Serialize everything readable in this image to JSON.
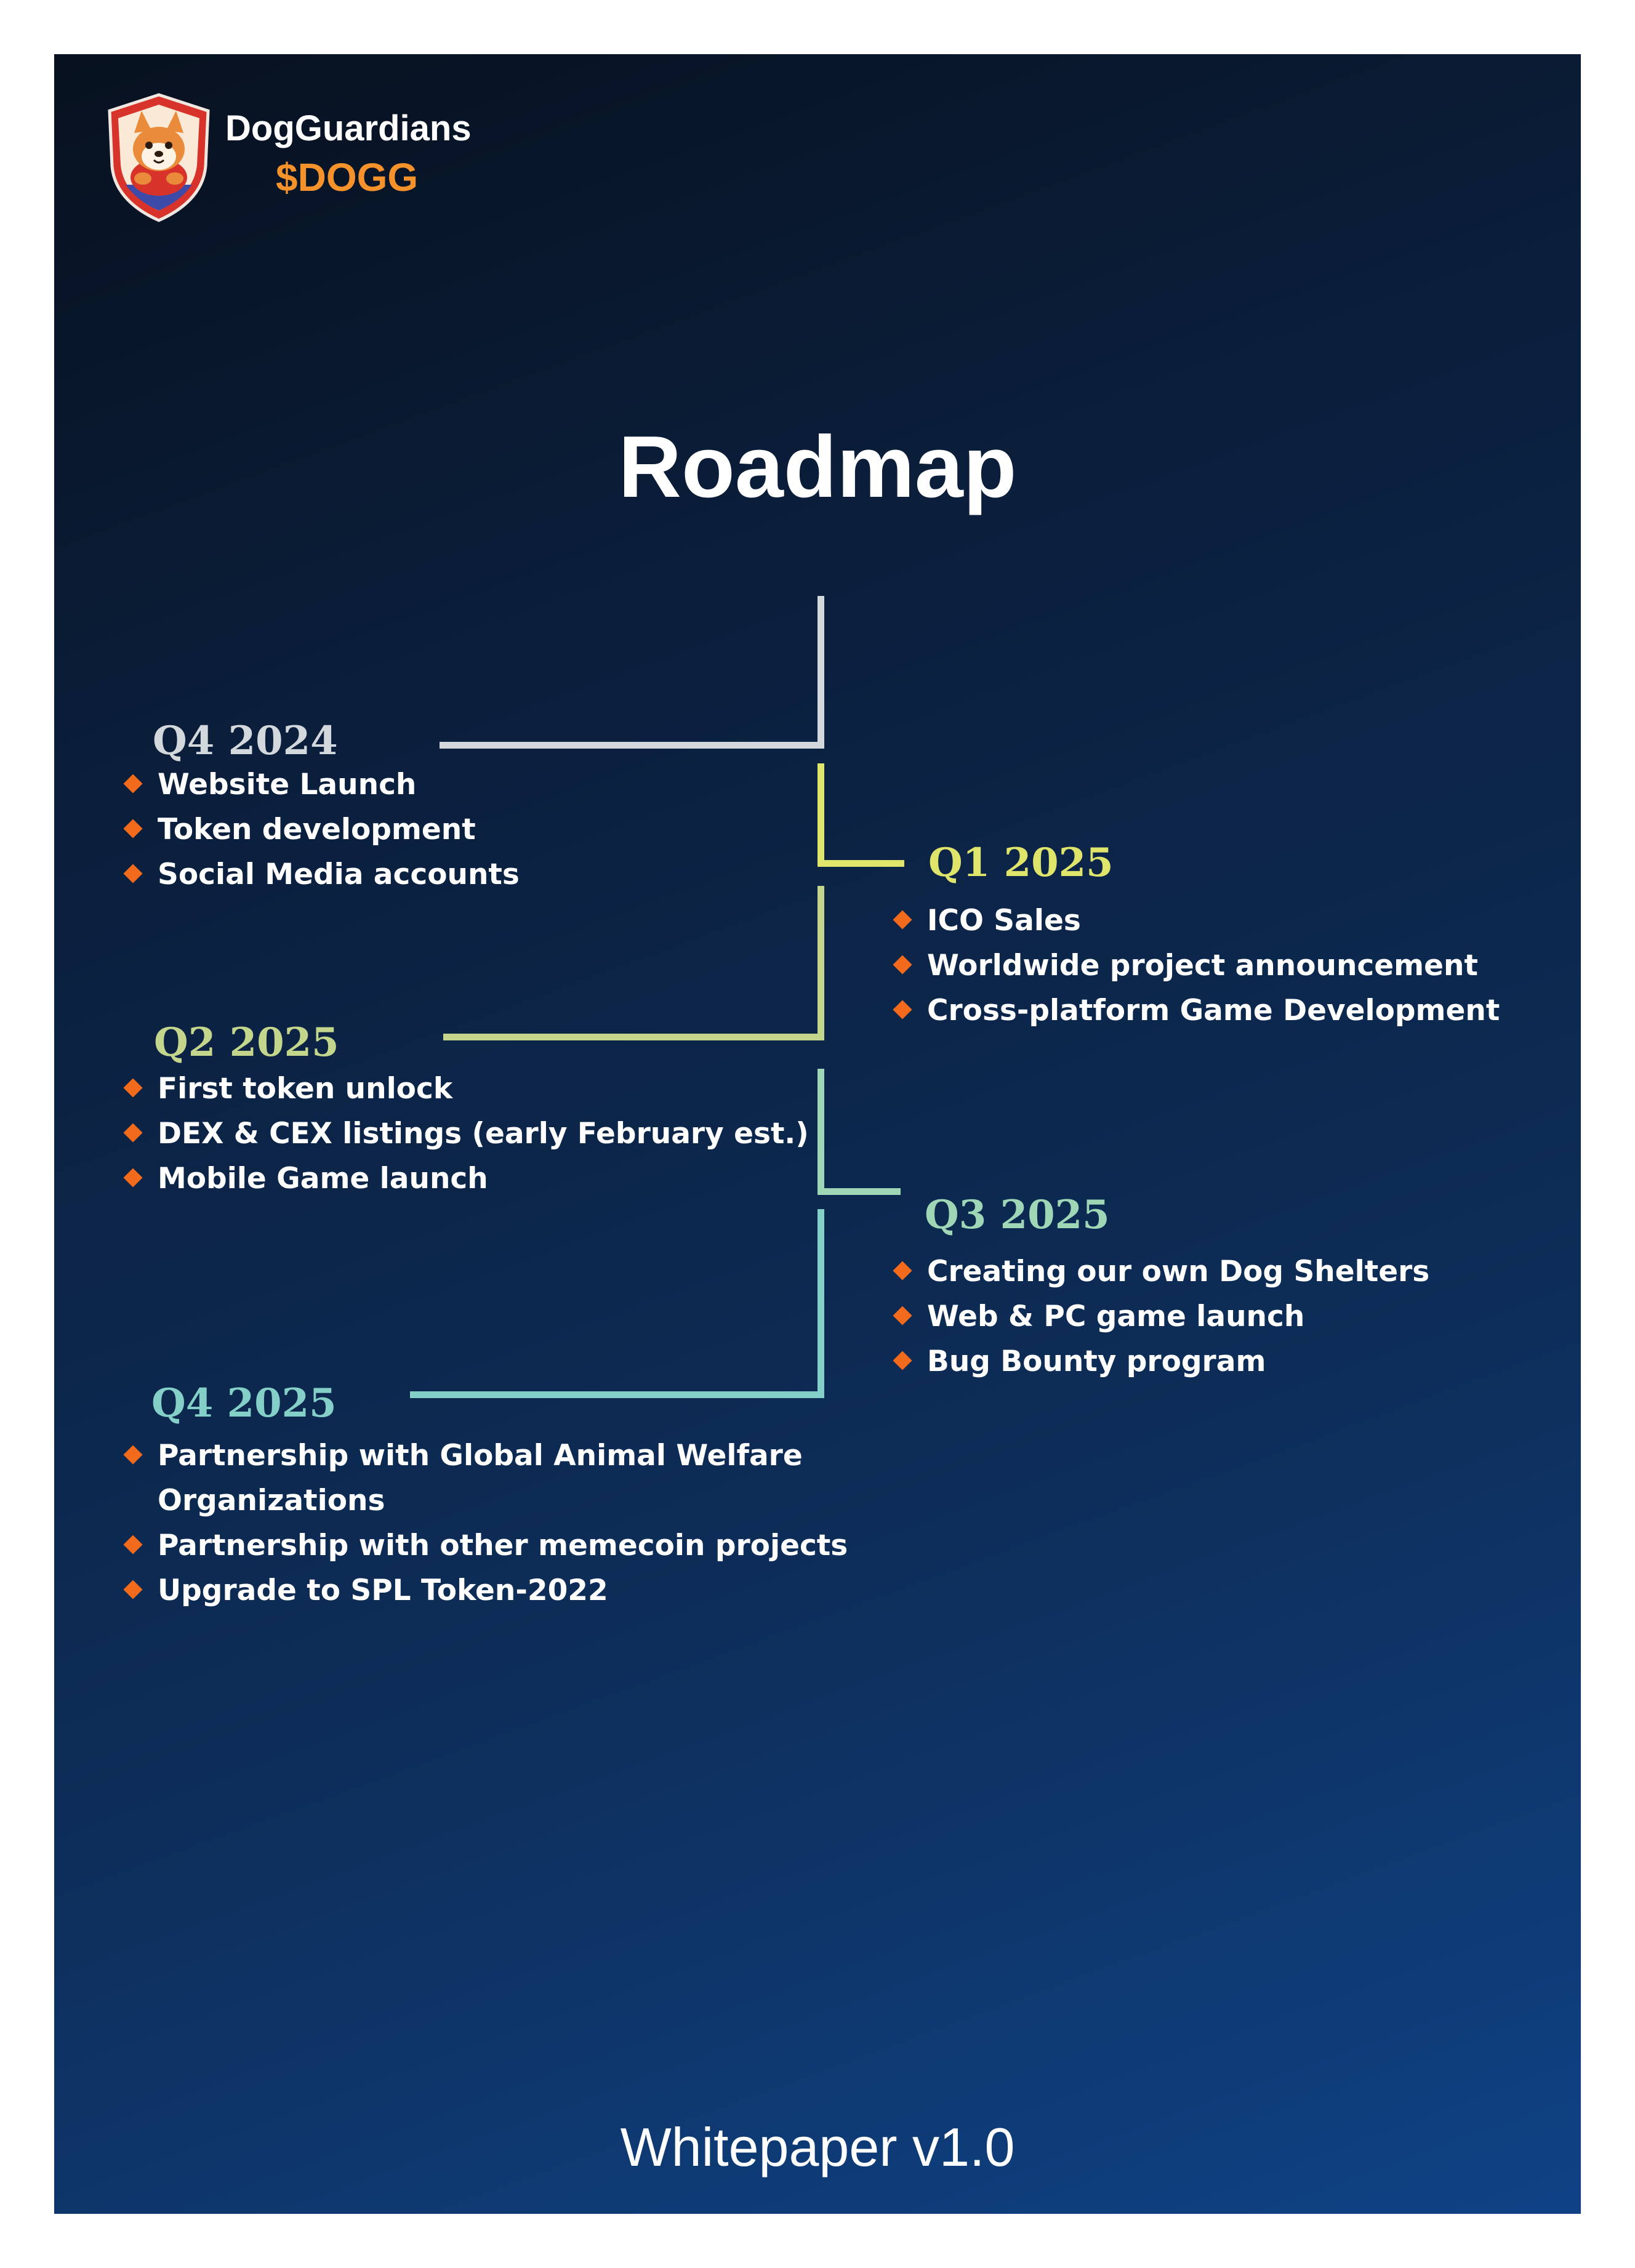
{
  "brand": {
    "name": "DogGuardians",
    "ticker": "$DOGG"
  },
  "title": "Roadmap",
  "footer": "Whitepaper v1.0",
  "colors": {
    "q4_2024": "#d3d8dc",
    "q1_2025": "#dfe46a",
    "q2_2025": "#c3d68c",
    "q3_2025": "#9ed6b6",
    "q4_2025": "#84d0c8",
    "bullet": "#f26a1c",
    "accent": "#f5922b"
  },
  "icons": {
    "logo": "shiba-shield-logo-icon",
    "bullet": "orange-diamond-icon"
  },
  "roadmap": [
    {
      "label": "Q4 2024",
      "items": [
        "Website Launch",
        "Token development",
        "Social Media accounts"
      ]
    },
    {
      "label": "Q1 2025",
      "items": [
        "ICO Sales",
        "Worldwide project announcement",
        "Cross-platform Game Development"
      ]
    },
    {
      "label": "Q2 2025",
      "items": [
        "First token unlock",
        "DEX & CEX listings (early February est.)",
        "Mobile Game launch"
      ]
    },
    {
      "label": "Q3 2025",
      "items": [
        "Creating our own Dog Shelters",
        "Web & PC game launch",
        "Bug Bounty program"
      ]
    },
    {
      "label": "Q4 2025",
      "items": [
        "Partnership with Global Animal Welfare Organizations",
        "Partnership with other memecoin projects",
        "Upgrade to SPL Token-2022"
      ],
      "item0_lines": [
        "Partnership with Global Animal Welfare",
        "Organizations"
      ]
    }
  ]
}
